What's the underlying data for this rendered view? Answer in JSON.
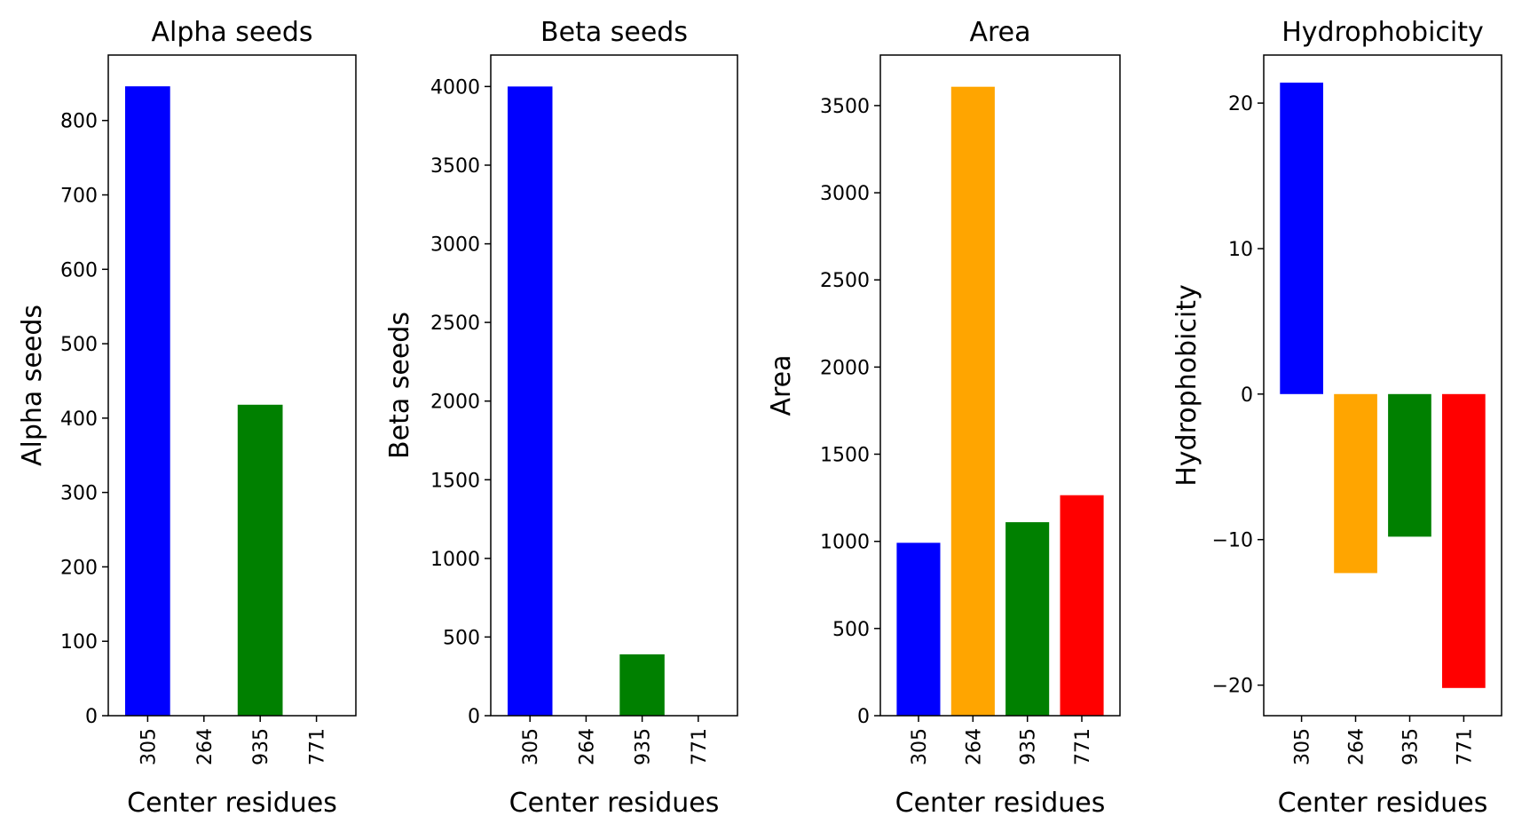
{
  "chart_data": [
    {
      "type": "bar",
      "title": "Alpha seeds",
      "xlabel": "Center residues",
      "ylabel": "Alpha seeds",
      "categories": [
        "305",
        "264",
        "935",
        "771"
      ],
      "values": [
        846,
        0,
        418,
        0
      ],
      "colors": [
        "#0000ff",
        "#ffa500",
        "#008000",
        "#ff0000"
      ],
      "ylim": [
        0,
        888
      ],
      "yticks": [
        0,
        100,
        200,
        300,
        400,
        500,
        600,
        700,
        800
      ],
      "grid": false
    },
    {
      "type": "bar",
      "title": "Beta seeds",
      "xlabel": "Center residues",
      "ylabel": "Beta seeds",
      "categories": [
        "305",
        "264",
        "935",
        "771"
      ],
      "values": [
        4000,
        0,
        390,
        0
      ],
      "colors": [
        "#0000ff",
        "#ffa500",
        "#008000",
        "#ff0000"
      ],
      "ylim": [
        0,
        4200
      ],
      "yticks": [
        0,
        500,
        1000,
        1500,
        2000,
        2500,
        3000,
        3500,
        4000
      ],
      "grid": false
    },
    {
      "type": "bar",
      "title": "Area",
      "xlabel": "Center residues",
      "ylabel": "Area",
      "categories": [
        "305",
        "264",
        "935",
        "771"
      ],
      "values": [
        992,
        3608,
        1110,
        1265
      ],
      "colors": [
        "#0000ff",
        "#ffa500",
        "#008000",
        "#ff0000"
      ],
      "ylim": [
        0,
        3790
      ],
      "yticks": [
        0,
        500,
        1000,
        1500,
        2000,
        2500,
        3000,
        3500
      ],
      "grid": false
    },
    {
      "type": "bar",
      "title": "Hydrophobicity",
      "xlabel": "Center residues",
      "ylabel": "Hydrophobicity",
      "categories": [
        "305",
        "264",
        "935",
        "771"
      ],
      "values": [
        21.4,
        -12.3,
        -9.8,
        -20.2
      ],
      "colors": [
        "#0000ff",
        "#ffa500",
        "#008000",
        "#ff0000"
      ],
      "ylim": [
        -22.1,
        23.3
      ],
      "yticks": [
        -20,
        -10,
        0,
        10,
        20
      ],
      "ytick_labels": [
        "−20",
        "−10",
        "0",
        "10",
        "20"
      ],
      "grid": false
    }
  ]
}
